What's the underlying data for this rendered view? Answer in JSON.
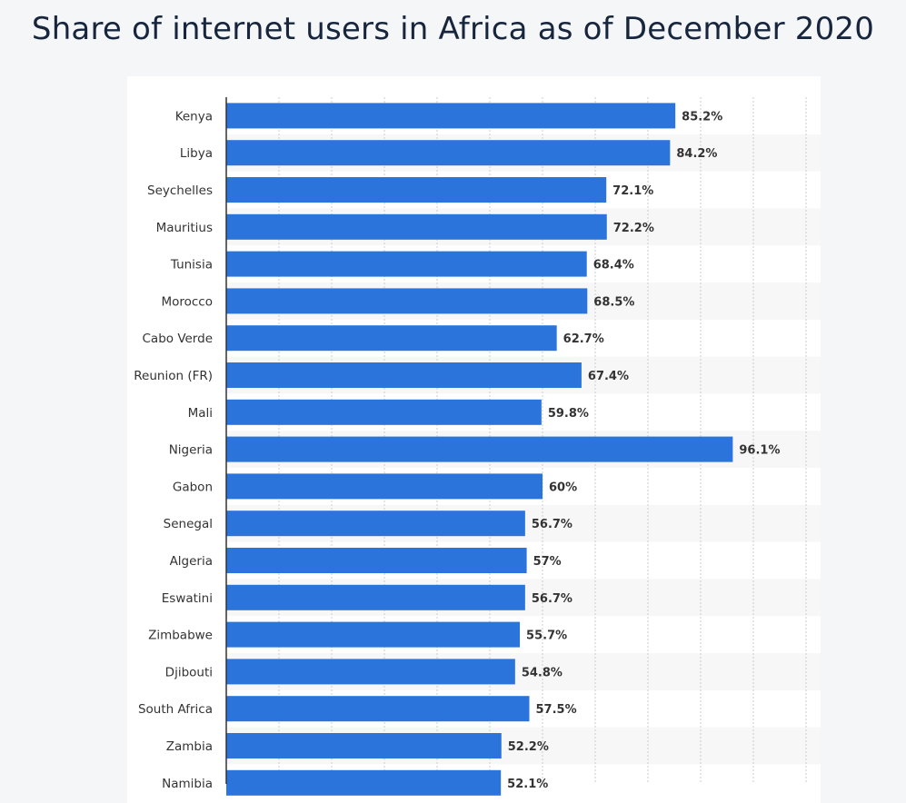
{
  "title": "Share of internet users in Africa as of December 2020",
  "colors": {
    "bar": "#2a74db",
    "band": "#f7f7f7",
    "grid": "#c9ced6",
    "axis": "#333333",
    "title": "#17263c"
  },
  "chart_data": {
    "type": "bar",
    "orientation": "horizontal",
    "title": "Share of internet users in Africa as of December 2020",
    "xlabel": "",
    "ylabel": "",
    "xlim": [
      0,
      110
    ],
    "grid": true,
    "unit": "%",
    "categories": [
      "Kenya",
      "Libya",
      "Seychelles",
      "Mauritius",
      "Tunisia",
      "Morocco",
      "Cabo Verde",
      "Reunion (FR)",
      "Mali",
      "Nigeria",
      "Gabon",
      "Senegal",
      "Algeria",
      "Eswatini",
      "Zimbabwe",
      "Djibouti",
      "South Africa",
      "Zambia",
      "Namibia"
    ],
    "values": [
      85.2,
      84.2,
      72.1,
      72.2,
      68.4,
      68.5,
      62.7,
      67.4,
      59.8,
      96.1,
      60,
      56.7,
      57,
      56.7,
      55.7,
      54.8,
      57.5,
      52.2,
      52.1
    ],
    "value_labels": [
      "85.2%",
      "84.2%",
      "72.1%",
      "72.2%",
      "68.4%",
      "68.5%",
      "62.7%",
      "67.4%",
      "59.8%",
      "96.1%",
      "60%",
      "56.7%",
      "57%",
      "56.7%",
      "55.7%",
      "54.8%",
      "57.5%",
      "52.2%",
      "52.1%"
    ]
  }
}
